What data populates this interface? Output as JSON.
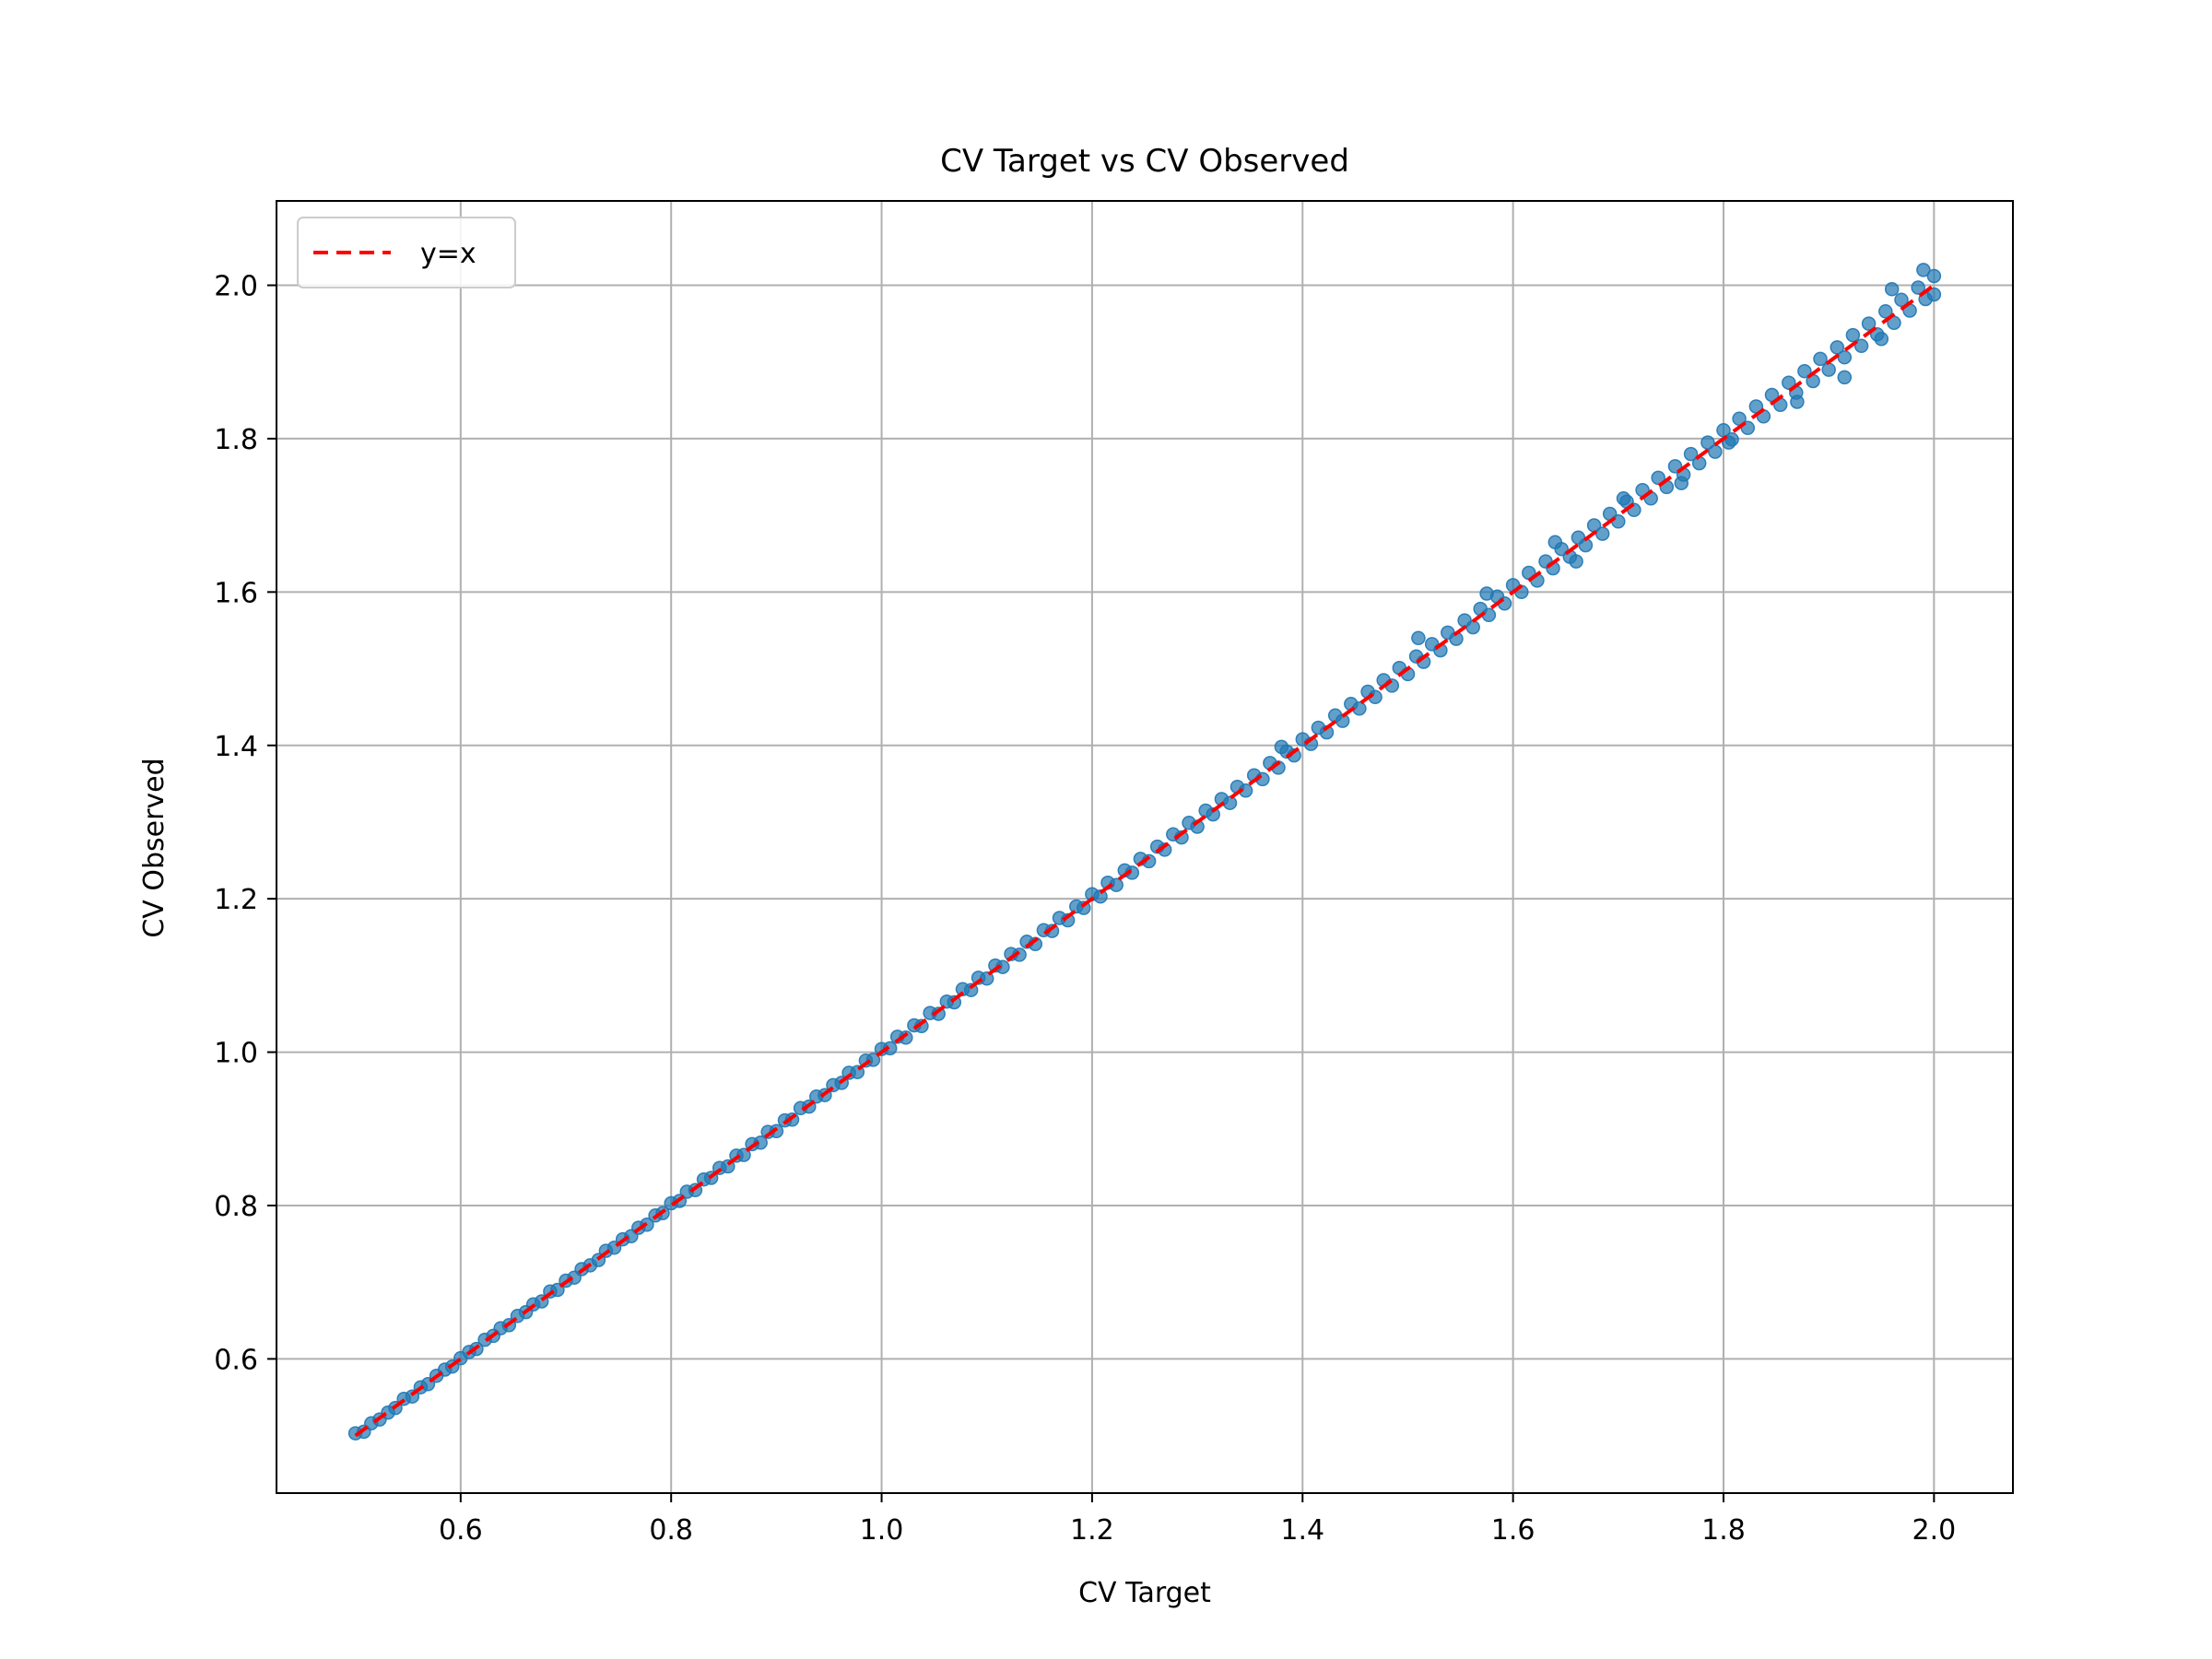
{
  "chart_data": {
    "type": "scatter",
    "title": "CV Target vs CV Observed",
    "xlabel": "CV Target",
    "ylabel": "CV Observed",
    "xlim": [
      0.425,
      2.075
    ],
    "ylim": [
      0.425,
      2.11
    ],
    "xticks": [
      0.6,
      0.8,
      1.0,
      1.2,
      1.4,
      1.6,
      1.8,
      2.0
    ],
    "yticks": [
      0.6,
      0.8,
      1.0,
      1.2,
      1.4,
      1.6,
      1.8,
      2.0
    ],
    "xtick_labels": [
      "0.6",
      "0.8",
      "1.0",
      "1.2",
      "1.4",
      "1.6",
      "1.8",
      "2.0"
    ],
    "ytick_labels": [
      "0.6",
      "0.8",
      "1.0",
      "1.2",
      "1.4",
      "1.6",
      "1.8",
      "2.0"
    ],
    "grid": true,
    "legend": {
      "placement": "top-left",
      "entries": [
        {
          "label": "y=x",
          "color": "#ff0000",
          "style": "dashed"
        }
      ]
    },
    "reference_line": {
      "label": "y=x",
      "x": [
        0.5,
        2.0
      ],
      "y": [
        0.5,
        2.0
      ],
      "color": "#ff0000"
    },
    "points_color": "#1f77b4",
    "points": [
      [
        0.5,
        0.503
      ],
      [
        0.508,
        0.505
      ],
      [
        0.515,
        0.516
      ],
      [
        0.523,
        0.521
      ],
      [
        0.531,
        0.53
      ],
      [
        0.538,
        0.536
      ],
      [
        0.546,
        0.548
      ],
      [
        0.554,
        0.551
      ],
      [
        0.562,
        0.563
      ],
      [
        0.569,
        0.567
      ],
      [
        0.577,
        0.578
      ],
      [
        0.585,
        0.586
      ],
      [
        0.592,
        0.59
      ],
      [
        0.6,
        0.601
      ],
      [
        0.608,
        0.609
      ],
      [
        0.615,
        0.613
      ],
      [
        0.623,
        0.625
      ],
      [
        0.631,
        0.63
      ],
      [
        0.638,
        0.64
      ],
      [
        0.646,
        0.644
      ],
      [
        0.654,
        0.656
      ],
      [
        0.662,
        0.661
      ],
      [
        0.669,
        0.671
      ],
      [
        0.677,
        0.675
      ],
      [
        0.685,
        0.688
      ],
      [
        0.692,
        0.69
      ],
      [
        0.7,
        0.702
      ],
      [
        0.708,
        0.706
      ],
      [
        0.715,
        0.717
      ],
      [
        0.723,
        0.722
      ],
      [
        0.731,
        0.729
      ],
      [
        0.738,
        0.741
      ],
      [
        0.746,
        0.745
      ],
      [
        0.754,
        0.756
      ],
      [
        0.762,
        0.76
      ],
      [
        0.769,
        0.771
      ],
      [
        0.777,
        0.775
      ],
      [
        0.785,
        0.787
      ],
      [
        0.792,
        0.79
      ],
      [
        0.8,
        0.803
      ],
      [
        0.808,
        0.806
      ],
      [
        0.815,
        0.818
      ],
      [
        0.823,
        0.82
      ],
      [
        0.831,
        0.834
      ],
      [
        0.838,
        0.836
      ],
      [
        0.846,
        0.849
      ],
      [
        0.854,
        0.851
      ],
      [
        0.862,
        0.865
      ],
      [
        0.869,
        0.866
      ],
      [
        0.877,
        0.88
      ],
      [
        0.885,
        0.882
      ],
      [
        0.892,
        0.896
      ],
      [
        0.9,
        0.897
      ],
      [
        0.908,
        0.911
      ],
      [
        0.915,
        0.912
      ],
      [
        0.923,
        0.927
      ],
      [
        0.931,
        0.929
      ],
      [
        0.938,
        0.942
      ],
      [
        0.946,
        0.944
      ],
      [
        0.954,
        0.957
      ],
      [
        0.962,
        0.96
      ],
      [
        0.969,
        0.973
      ],
      [
        0.977,
        0.974
      ],
      [
        0.985,
        0.989
      ],
      [
        0.992,
        0.99
      ],
      [
        1.0,
        1.004
      ],
      [
        1.008,
        1.005
      ],
      [
        1.015,
        1.02
      ],
      [
        1.023,
        1.019
      ],
      [
        1.031,
        1.035
      ],
      [
        1.038,
        1.034
      ],
      [
        1.046,
        1.051
      ],
      [
        1.054,
        1.05
      ],
      [
        1.062,
        1.066
      ],
      [
        1.069,
        1.065
      ],
      [
        1.077,
        1.082
      ],
      [
        1.085,
        1.081
      ],
      [
        1.092,
        1.097
      ],
      [
        1.1,
        1.096
      ],
      [
        1.108,
        1.113
      ],
      [
        1.115,
        1.111
      ],
      [
        1.123,
        1.128
      ],
      [
        1.131,
        1.127
      ],
      [
        1.138,
        1.144
      ],
      [
        1.146,
        1.141
      ],
      [
        1.154,
        1.159
      ],
      [
        1.162,
        1.158
      ],
      [
        1.169,
        1.175
      ],
      [
        1.177,
        1.172
      ],
      [
        1.185,
        1.19
      ],
      [
        1.192,
        1.188
      ],
      [
        1.2,
        1.206
      ],
      [
        1.208,
        1.203
      ],
      [
        1.215,
        1.221
      ],
      [
        1.223,
        1.218
      ],
      [
        1.231,
        1.237
      ],
      [
        1.238,
        1.234
      ],
      [
        1.246,
        1.252
      ],
      [
        1.254,
        1.249
      ],
      [
        1.262,
        1.268
      ],
      [
        1.269,
        1.264
      ],
      [
        1.277,
        1.284
      ],
      [
        1.285,
        1.28
      ],
      [
        1.292,
        1.299
      ],
      [
        1.3,
        1.294
      ],
      [
        1.308,
        1.315
      ],
      [
        1.315,
        1.31
      ],
      [
        1.323,
        1.33
      ],
      [
        1.331,
        1.325
      ],
      [
        1.338,
        1.346
      ],
      [
        1.346,
        1.341
      ],
      [
        1.354,
        1.361
      ],
      [
        1.362,
        1.356
      ],
      [
        1.369,
        1.377
      ],
      [
        1.377,
        1.371
      ],
      [
        1.385,
        1.392
      ],
      [
        1.392,
        1.387
      ],
      [
        1.4,
        1.408
      ],
      [
        1.408,
        1.402
      ],
      [
        1.415,
        1.423
      ],
      [
        1.423,
        1.417
      ],
      [
        1.431,
        1.439
      ],
      [
        1.438,
        1.432
      ],
      [
        1.446,
        1.454
      ],
      [
        1.454,
        1.448
      ],
      [
        1.462,
        1.47
      ],
      [
        1.469,
        1.463
      ],
      [
        1.477,
        1.485
      ],
      [
        1.485,
        1.478
      ],
      [
        1.492,
        1.501
      ],
      [
        1.5,
        1.493
      ],
      [
        1.508,
        1.516
      ],
      [
        1.515,
        1.509
      ],
      [
        1.523,
        1.532
      ],
      [
        1.531,
        1.524
      ],
      [
        1.538,
        1.547
      ],
      [
        1.546,
        1.539
      ],
      [
        1.554,
        1.563
      ],
      [
        1.562,
        1.554
      ],
      [
        1.569,
        1.578
      ],
      [
        1.577,
        1.57
      ],
      [
        1.585,
        1.594
      ],
      [
        1.592,
        1.585
      ],
      [
        1.6,
        1.609
      ],
      [
        1.608,
        1.6
      ],
      [
        1.615,
        1.625
      ],
      [
        1.623,
        1.615
      ],
      [
        1.631,
        1.64
      ],
      [
        1.638,
        1.631
      ],
      [
        1.646,
        1.656
      ],
      [
        1.654,
        1.646
      ],
      [
        1.662,
        1.671
      ],
      [
        1.669,
        1.661
      ],
      [
        1.677,
        1.687
      ],
      [
        1.685,
        1.676
      ],
      [
        1.692,
        1.702
      ],
      [
        1.7,
        1.692
      ],
      [
        1.708,
        1.718
      ],
      [
        1.715,
        1.707
      ],
      [
        1.723,
        1.733
      ],
      [
        1.731,
        1.722
      ],
      [
        1.738,
        1.749
      ],
      [
        1.746,
        1.737
      ],
      [
        1.754,
        1.764
      ],
      [
        1.762,
        1.753
      ],
      [
        1.769,
        1.78
      ],
      [
        1.777,
        1.768
      ],
      [
        1.785,
        1.795
      ],
      [
        1.792,
        1.783
      ],
      [
        1.8,
        1.811
      ],
      [
        1.808,
        1.799
      ],
      [
        1.815,
        1.826
      ],
      [
        1.823,
        1.814
      ],
      [
        1.831,
        1.842
      ],
      [
        1.838,
        1.829
      ],
      [
        1.846,
        1.857
      ],
      [
        1.854,
        1.844
      ],
      [
        1.862,
        1.873
      ],
      [
        1.869,
        1.86
      ],
      [
        1.877,
        1.888
      ],
      [
        1.885,
        1.875
      ],
      [
        1.892,
        1.904
      ],
      [
        1.9,
        1.89
      ],
      [
        1.908,
        1.919
      ],
      [
        1.915,
        1.906
      ],
      [
        1.923,
        1.935
      ],
      [
        1.931,
        1.921
      ],
      [
        1.938,
        1.95
      ],
      [
        1.946,
        1.936
      ],
      [
        1.954,
        1.966
      ],
      [
        1.962,
        1.951
      ],
      [
        1.969,
        1.981
      ],
      [
        1.977,
        1.967
      ],
      [
        1.985,
        1.997
      ],
      [
        1.992,
        1.982
      ],
      [
        2.0,
        2.012
      ],
      [
        1.99,
        2.02
      ],
      [
        2.0,
        1.988
      ],
      [
        1.805,
        1.795
      ],
      [
        1.64,
        1.665
      ],
      [
        1.51,
        1.54
      ],
      [
        1.38,
        1.398
      ],
      [
        1.87,
        1.848
      ],
      [
        1.95,
        1.93
      ],
      [
        1.76,
        1.742
      ],
      [
        1.575,
        1.598
      ],
      [
        1.705,
        1.722
      ],
      [
        1.96,
        1.995
      ],
      [
        1.915,
        1.88
      ],
      [
        1.66,
        1.64
      ]
    ]
  }
}
